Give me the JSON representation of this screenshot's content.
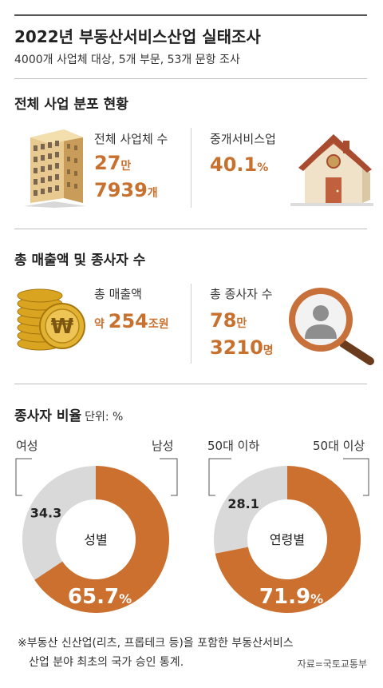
{
  "title": "2022년 부동산서비스산업 실태조사",
  "subtitle": "4000개 사업체 대상, 5개 부문, 53개 문항 조사",
  "section1": {
    "title": "전체 사업 분포 현황",
    "business_count": {
      "label": "전체 사업체 수",
      "line1_num": "27",
      "line1_unit": "만",
      "line2_num": "7939",
      "line2_unit": "개"
    },
    "brokerage": {
      "label": "중개서비스업",
      "value": "40.1",
      "unit": "%"
    }
  },
  "section2": {
    "title": "총 매출액 및 종사자 수",
    "revenue": {
      "label": "총 매출액",
      "prefix": "약 ",
      "num": "254",
      "unit": "조원"
    },
    "employees": {
      "label": "총 종사자 수",
      "line1_num": "78",
      "line1_unit": "만",
      "line2_num": "3210",
      "line2_unit": "명"
    }
  },
  "section3": {
    "title": "종사자 비율",
    "unit": "단위: %"
  },
  "chart_data": [
    {
      "type": "pie",
      "center_label": "성별",
      "categories": [
        "여성",
        "남성"
      ],
      "values": [
        34.3,
        65.7
      ],
      "value_labels": [
        "34.3",
        "65.7"
      ],
      "unit": "%",
      "colors": [
        "#d9d9d9",
        "#cc7030"
      ]
    },
    {
      "type": "pie",
      "center_label": "연령별",
      "categories": [
        "50대 이하",
        "50대 이상"
      ],
      "values": [
        28.1,
        71.9
      ],
      "value_labels": [
        "28.1",
        "71.9"
      ],
      "unit": "%",
      "colors": [
        "#d9d9d9",
        "#cc7030"
      ]
    }
  ],
  "footer": {
    "note_line1": "※부동산 신산업(리츠, 프롭테크 등)을 포함한 부동산서비스",
    "note_line2": "산업 분야 최초의 국가 승인 통계.",
    "source": "자료=국토교통부"
  },
  "icons": [
    "building-icon",
    "house-icon",
    "coins-icon",
    "magnifier-person-icon"
  ],
  "colors": {
    "accent": "#cc7030",
    "grey": "#d9d9d9",
    "text": "#222222"
  }
}
